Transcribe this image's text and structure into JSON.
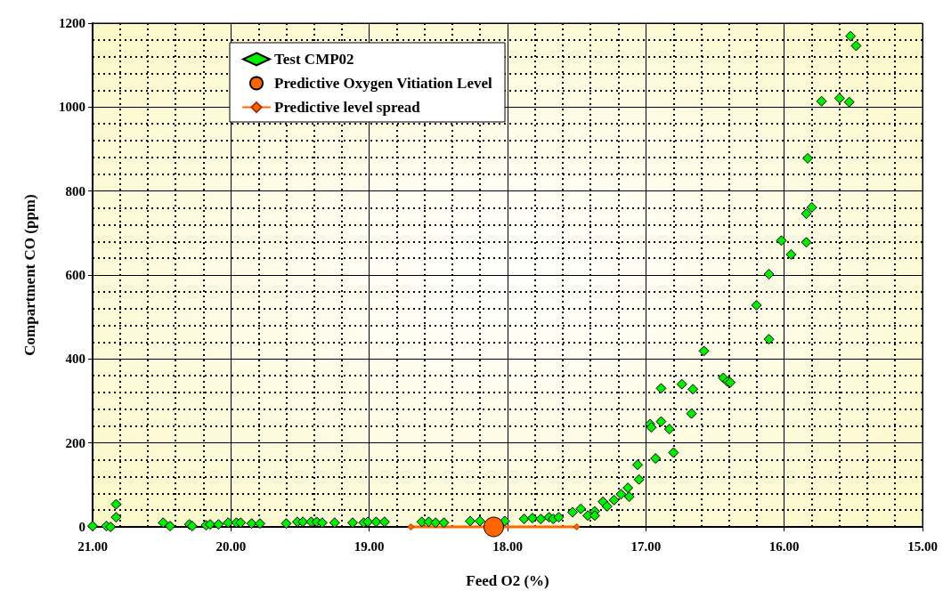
{
  "chart_data": {
    "type": "scatter",
    "xlabel": "Feed O2 (%)",
    "ylabel": "Compartment CO (ppm)",
    "xlim": [
      21,
      15
    ],
    "xticks": [
      {
        "value": 21,
        "label": "21.00"
      },
      {
        "value": 20,
        "label": "20.00"
      },
      {
        "value": 19,
        "label": "19.00"
      },
      {
        "value": 18,
        "label": "18.00"
      },
      {
        "value": 17,
        "label": "17.00"
      },
      {
        "value": 16,
        "label": "16.00"
      },
      {
        "value": 15,
        "label": "15.00"
      }
    ],
    "ylim": [
      0,
      1200
    ],
    "yticks": [
      0,
      200,
      400,
      600,
      800,
      1000,
      1200
    ],
    "grid": true,
    "legend": "top left",
    "series": [
      {
        "name": "Test CMP02",
        "color": "#00ee00",
        "marker": "diamond",
        "x": [
          21.0,
          20.9,
          20.87,
          20.83,
          20.83,
          20.49,
          20.44,
          20.3,
          20.28,
          20.18,
          20.15,
          20.09,
          20.02,
          19.96,
          19.93,
          19.85,
          19.79,
          19.6,
          19.52,
          19.48,
          19.42,
          19.38,
          19.34,
          19.25,
          19.12,
          19.04,
          19.01,
          18.95,
          18.89,
          18.62,
          18.57,
          18.52,
          18.46,
          18.27,
          18.2,
          18.02,
          17.88,
          17.82,
          17.76,
          17.7,
          17.67,
          17.63,
          17.53,
          17.47,
          17.42,
          17.37,
          17.37,
          17.31,
          17.28,
          17.23,
          17.18,
          17.13,
          17.12,
          17.06,
          17.05,
          16.97,
          16.96,
          16.93,
          16.89,
          16.89,
          16.83,
          16.8,
          16.74,
          16.66,
          16.67,
          16.58,
          16.44,
          16.41,
          16.39,
          16.11,
          16.2,
          16.11,
          16.02,
          15.95,
          15.84,
          15.84,
          15.8,
          15.83,
          15.73,
          15.6,
          15.53,
          15.52,
          15.48
        ],
        "values": [
          2,
          2,
          0,
          54,
          23,
          10,
          2,
          6,
          2,
          4,
          6,
          6,
          10,
          10,
          10,
          8,
          8,
          8,
          12,
          12,
          12,
          12,
          10,
          10,
          10,
          10,
          12,
          12,
          12,
          12,
          12,
          10,
          10,
          14,
          14,
          14,
          19,
          21,
          19,
          23,
          19,
          23,
          35,
          43,
          27,
          37,
          27,
          60,
          49,
          64,
          78,
          93,
          72,
          148,
          113,
          245,
          237,
          163,
          251,
          330,
          233,
          177,
          340,
          328,
          270,
          419,
          355,
          346,
          344,
          447,
          528,
          602,
          682,
          649,
          678,
          746,
          761,
          878,
          1014,
          1021,
          1012,
          1169,
          1146
        ]
      },
      {
        "name": "Predictive Oxygen Vitiation Level",
        "color": "#ff6600",
        "marker": "circle",
        "x": [
          18.1
        ],
        "values": [
          0
        ]
      },
      {
        "name": "Predictive level spread",
        "type": "line",
        "color": "#ff6600",
        "marker": "diamond",
        "line_style": "solid",
        "x": [
          18.7,
          17.5
        ],
        "values": [
          0,
          0
        ]
      }
    ]
  }
}
